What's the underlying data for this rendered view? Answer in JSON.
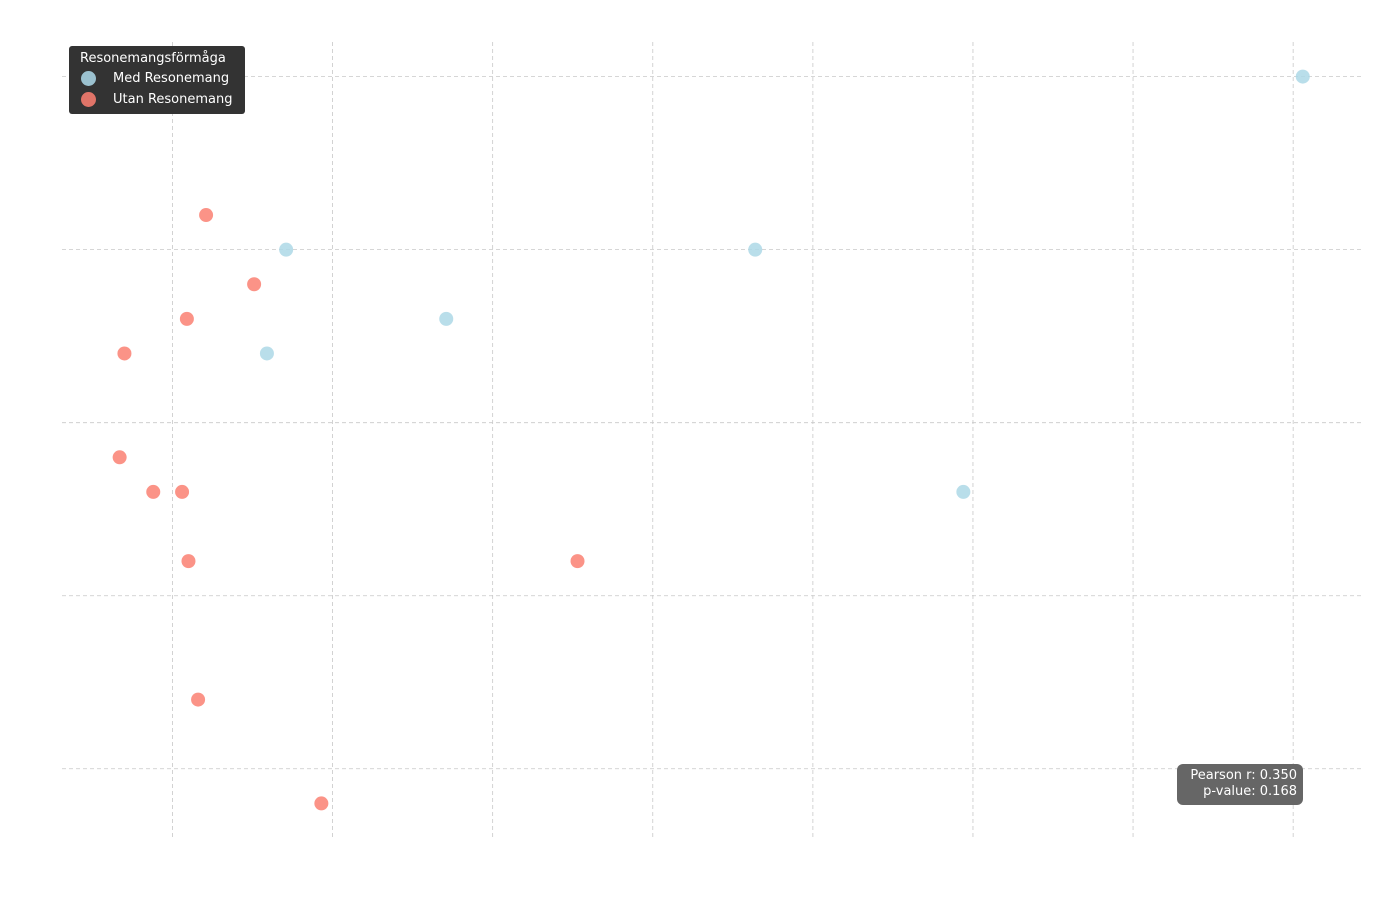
{
  "chart_data": {
    "type": "scatter",
    "title": "",
    "xlabel": "",
    "ylabel": "",
    "xlim": [
      -0.69,
      7.43
    ],
    "ylim": [
      -0.4,
      4.2
    ],
    "x_gridlines": [
      0,
      1,
      2,
      3,
      4,
      5,
      6,
      7
    ],
    "y_gridlines": [
      0,
      1,
      2,
      3,
      4
    ],
    "grid": true,
    "legend": {
      "title": "Resonemangsförmåga",
      "placement": "top-left"
    },
    "series": [
      {
        "name": "Med Resonemang",
        "color": "#add8e6",
        "points": [
          [
            7.06,
            4.0
          ],
          [
            0.71,
            3.0
          ],
          [
            3.64,
            3.0
          ],
          [
            1.71,
            2.6
          ],
          [
            0.59,
            2.4
          ],
          [
            4.94,
            1.6
          ]
        ]
      },
      {
        "name": "Utan Resonemang",
        "color": "#fa8072",
        "points": [
          [
            0.21,
            3.2
          ],
          [
            0.51,
            2.8
          ],
          [
            0.09,
            2.6
          ],
          [
            -0.3,
            2.4
          ],
          [
            -0.33,
            1.8
          ],
          [
            -0.12,
            1.6
          ],
          [
            0.06,
            1.6
          ],
          [
            0.1,
            1.2
          ],
          [
            2.53,
            1.2
          ],
          [
            0.16,
            0.4
          ],
          [
            0.93,
            -0.2
          ]
        ]
      }
    ],
    "annotation": {
      "pearson": "Pearson r: 0.350",
      "pvalue": "p-value: 0.168"
    }
  }
}
